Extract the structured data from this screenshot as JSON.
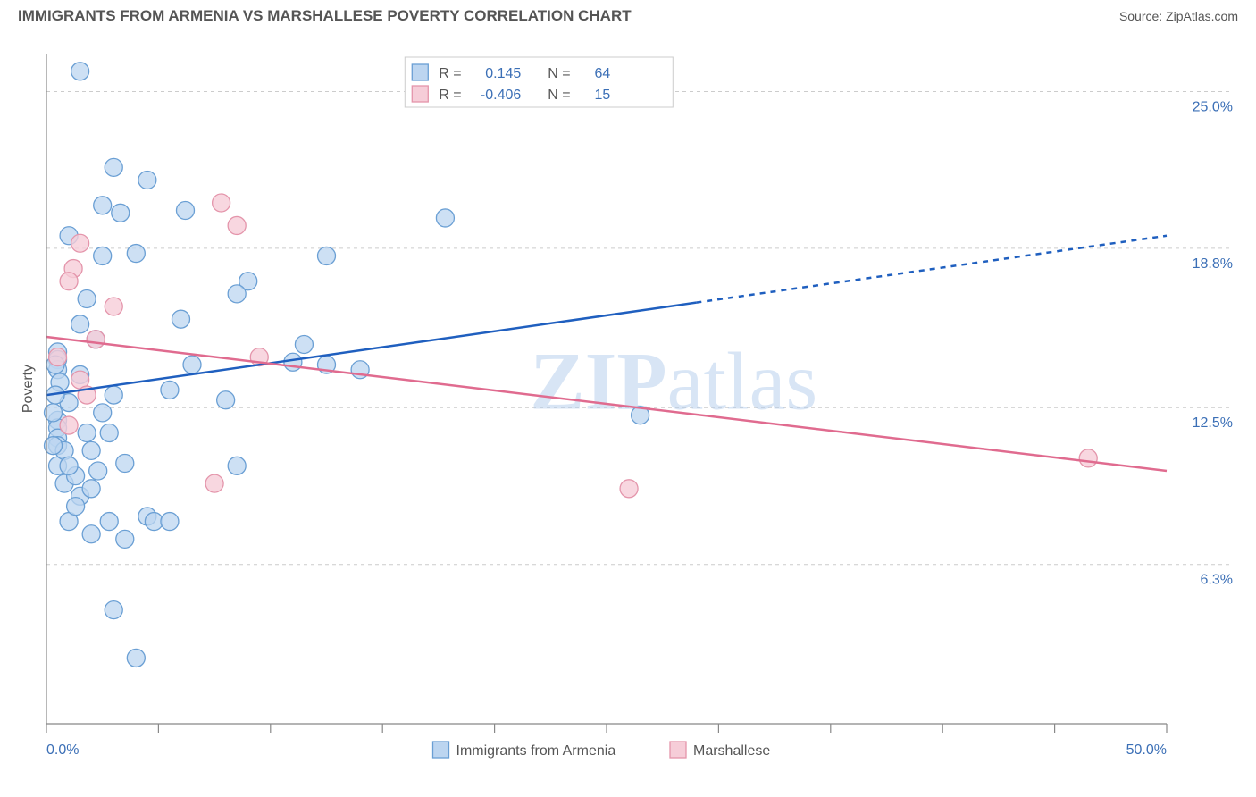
{
  "title": "IMMIGRANTS FROM ARMENIA VS MARSHALLESE POVERTY CORRELATION CHART",
  "source_label": "Source: ZipAtlas.com",
  "watermark": {
    "bold": "ZIP",
    "light": "atlas"
  },
  "chart": {
    "type": "scatter-with-regression",
    "background_color": "#ffffff",
    "plot_border_color": "#888888",
    "grid_color": "#cccccc",
    "grid_dash": "4,4",
    "text_color": "#555555",
    "tick_color": "#888888",
    "axis_label_color": "#555555",
    "value_label_color": "#3b6fb6",
    "xlim": [
      0,
      50
    ],
    "ylim": [
      0,
      26.5
    ],
    "x_axis": {
      "min_label": "0.0%",
      "max_label": "50.0%",
      "tick_positions": [
        0,
        5,
        10,
        15,
        20,
        25,
        30,
        35,
        40,
        45,
        50
      ]
    },
    "y_axis": {
      "label": "Poverty",
      "gridlines": [
        {
          "y": 6.3,
          "label": "6.3%"
        },
        {
          "y": 12.5,
          "label": "12.5%"
        },
        {
          "y": 18.8,
          "label": "18.8%"
        },
        {
          "y": 25.0,
          "label": "25.0%"
        }
      ]
    },
    "legend_top": {
      "rows": [
        {
          "swatch_fill": "#bcd5f0",
          "swatch_stroke": "#6a9fd4",
          "r_label": "R =",
          "r_value": "0.145",
          "n_label": "N =",
          "n_value": "64"
        },
        {
          "swatch_fill": "#f6cdd8",
          "swatch_stroke": "#e495ab",
          "r_label": "R =",
          "r_value": "-0.406",
          "n_label": "N =",
          "n_value": "15"
        }
      ],
      "border_color": "#cccccc"
    },
    "legend_bottom": {
      "items": [
        {
          "swatch_fill": "#bcd5f0",
          "swatch_stroke": "#6a9fd4",
          "label": "Immigrants from Armenia"
        },
        {
          "swatch_fill": "#f6cdd8",
          "swatch_stroke": "#e495ab",
          "label": "Marshallese"
        }
      ]
    },
    "series": [
      {
        "name": "Immigrants from Armenia",
        "marker_fill": "#bcd5f0",
        "marker_stroke": "#6a9fd4",
        "marker_opacity": 0.75,
        "marker_radius": 10,
        "reg_color": "#1f5fbf",
        "reg_width": 2.5,
        "reg_solid_xmax": 29,
        "reg_start": {
          "x": 0,
          "y": 13.0
        },
        "reg_end": {
          "x": 50,
          "y": 19.3
        },
        "points": [
          {
            "x": 1.5,
            "y": 25.8
          },
          {
            "x": 3.0,
            "y": 22.0
          },
          {
            "x": 4.5,
            "y": 21.5
          },
          {
            "x": 2.5,
            "y": 20.5
          },
          {
            "x": 3.3,
            "y": 20.2
          },
          {
            "x": 6.2,
            "y": 20.3
          },
          {
            "x": 1.0,
            "y": 19.3
          },
          {
            "x": 17.8,
            "y": 20.0
          },
          {
            "x": 2.5,
            "y": 18.5
          },
          {
            "x": 4.0,
            "y": 18.6
          },
          {
            "x": 12.5,
            "y": 18.5
          },
          {
            "x": 9.0,
            "y": 17.5
          },
          {
            "x": 8.5,
            "y": 17.0
          },
          {
            "x": 6.0,
            "y": 16.0
          },
          {
            "x": 2.2,
            "y": 15.2
          },
          {
            "x": 11.5,
            "y": 15.0
          },
          {
            "x": 0.5,
            "y": 14.7
          },
          {
            "x": 0.5,
            "y": 14.4
          },
          {
            "x": 0.5,
            "y": 14.0
          },
          {
            "x": 11.0,
            "y": 14.3
          },
          {
            "x": 12.5,
            "y": 14.2
          },
          {
            "x": 14.0,
            "y": 14.0
          },
          {
            "x": 26.5,
            "y": 12.2
          },
          {
            "x": 0.5,
            "y": 12.0
          },
          {
            "x": 0.5,
            "y": 11.7
          },
          {
            "x": 0.5,
            "y": 11.3
          },
          {
            "x": 0.5,
            "y": 11.0
          },
          {
            "x": 1.0,
            "y": 12.7
          },
          {
            "x": 2.0,
            "y": 10.8
          },
          {
            "x": 2.8,
            "y": 11.5
          },
          {
            "x": 3.5,
            "y": 10.3
          },
          {
            "x": 8.0,
            "y": 12.8
          },
          {
            "x": 0.5,
            "y": 10.2
          },
          {
            "x": 0.8,
            "y": 9.5
          },
          {
            "x": 1.5,
            "y": 9.0
          },
          {
            "x": 1.3,
            "y": 9.8
          },
          {
            "x": 2.0,
            "y": 9.3
          },
          {
            "x": 8.5,
            "y": 10.2
          },
          {
            "x": 1.0,
            "y": 8.0
          },
          {
            "x": 2.8,
            "y": 8.0
          },
          {
            "x": 4.5,
            "y": 8.2
          },
          {
            "x": 4.8,
            "y": 8.0
          },
          {
            "x": 5.5,
            "y": 8.0
          },
          {
            "x": 3.0,
            "y": 4.5
          },
          {
            "x": 4.0,
            "y": 2.6
          },
          {
            "x": 0.4,
            "y": 14.2
          },
          {
            "x": 0.6,
            "y": 13.5
          },
          {
            "x": 5.5,
            "y": 13.2
          },
          {
            "x": 3.0,
            "y": 13.0
          },
          {
            "x": 0.4,
            "y": 13.0
          },
          {
            "x": 0.8,
            "y": 10.8
          },
          {
            "x": 1.5,
            "y": 13.8
          },
          {
            "x": 0.3,
            "y": 12.3
          },
          {
            "x": 2.5,
            "y": 12.3
          },
          {
            "x": 1.8,
            "y": 11.5
          },
          {
            "x": 0.3,
            "y": 11.0
          },
          {
            "x": 1.0,
            "y": 10.2
          },
          {
            "x": 2.3,
            "y": 10.0
          },
          {
            "x": 1.3,
            "y": 8.6
          },
          {
            "x": 2.0,
            "y": 7.5
          },
          {
            "x": 3.5,
            "y": 7.3
          },
          {
            "x": 1.5,
            "y": 15.8
          },
          {
            "x": 6.5,
            "y": 14.2
          },
          {
            "x": 1.8,
            "y": 16.8
          }
        ]
      },
      {
        "name": "Marshallese",
        "marker_fill": "#f6cdd8",
        "marker_stroke": "#e495ab",
        "marker_opacity": 0.8,
        "marker_radius": 10,
        "reg_color": "#e06b8f",
        "reg_width": 2.5,
        "reg_solid_xmax": 50,
        "reg_start": {
          "x": 0,
          "y": 15.3
        },
        "reg_end": {
          "x": 50,
          "y": 10.0
        },
        "points": [
          {
            "x": 7.8,
            "y": 20.6
          },
          {
            "x": 8.5,
            "y": 19.7
          },
          {
            "x": 1.5,
            "y": 19.0
          },
          {
            "x": 1.2,
            "y": 18.0
          },
          {
            "x": 1.0,
            "y": 17.5
          },
          {
            "x": 3.0,
            "y": 16.5
          },
          {
            "x": 9.5,
            "y": 14.5
          },
          {
            "x": 1.5,
            "y": 13.6
          },
          {
            "x": 1.8,
            "y": 13.0
          },
          {
            "x": 0.5,
            "y": 14.5
          },
          {
            "x": 2.2,
            "y": 15.2
          },
          {
            "x": 7.5,
            "y": 9.5
          },
          {
            "x": 26.0,
            "y": 9.3
          },
          {
            "x": 46.5,
            "y": 10.5
          },
          {
            "x": 1.0,
            "y": 11.8
          }
        ]
      }
    ]
  }
}
